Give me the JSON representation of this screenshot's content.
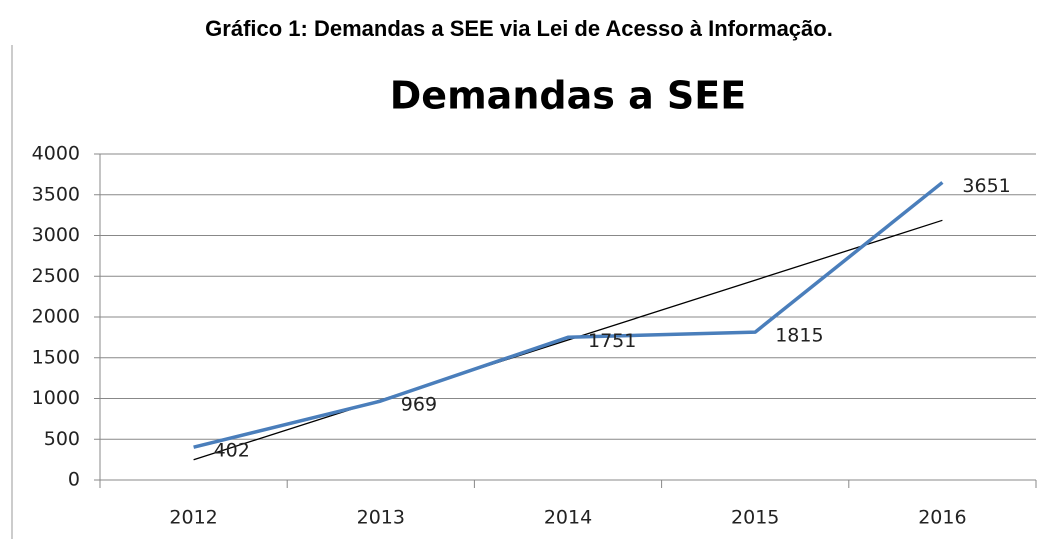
{
  "caption": "Gráfico 1: Demandas a SEE via Lei de Acesso à Informação.",
  "chart_data": {
    "type": "line",
    "title": "Demandas a SEE",
    "categories": [
      "2012",
      "2013",
      "2014",
      "2015",
      "2016"
    ],
    "values": [
      402,
      969,
      1751,
      1815,
      3651
    ],
    "color": "#4a7ebb",
    "ylim": [
      0,
      4000
    ],
    "yticks": [
      0,
      500,
      1000,
      1500,
      2000,
      2500,
      3000,
      3500,
      4000
    ],
    "grid": true,
    "trendline": "linear",
    "trendline_color": "#000000"
  }
}
